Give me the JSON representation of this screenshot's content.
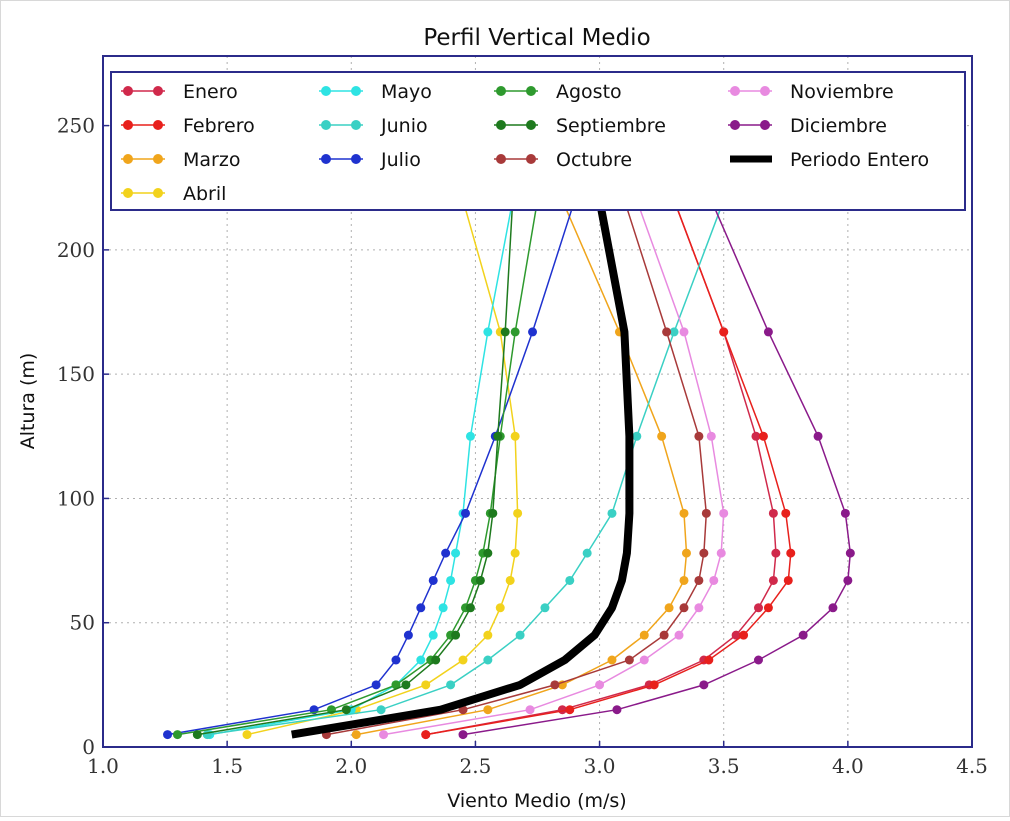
{
  "chart_data": {
    "type": "line",
    "title": "Perfil Vertical Medio",
    "xlabel": "Viento Medio (m/s)",
    "ylabel": "Altura (m)",
    "xlim": [
      1.0,
      4.5
    ],
    "ylim": [
      0,
      278
    ],
    "xticks": [
      "1.0",
      "1.5",
      "2.0",
      "2.5",
      "3.0",
      "3.5",
      "4.0",
      "4.5"
    ],
    "yticks": [
      "0",
      "50",
      "100",
      "150",
      "200",
      "250"
    ],
    "grid": true,
    "legend_position": "top",
    "heights": [
      5,
      15,
      25,
      35,
      45,
      56,
      67,
      78,
      94,
      125,
      167,
      220
    ],
    "series": [
      {
        "name": "Enero",
        "color": "#d0294b",
        "marker": true,
        "values": [
          2.3,
          2.85,
          3.2,
          3.42,
          3.55,
          3.64,
          3.7,
          3.71,
          3.7,
          3.63,
          3.5,
          3.3
        ]
      },
      {
        "name": "Febrero",
        "color": "#e8201c",
        "marker": true,
        "values": [
          2.3,
          2.88,
          3.22,
          3.44,
          3.58,
          3.68,
          3.76,
          3.77,
          3.75,
          3.66,
          3.5,
          3.3
        ]
      },
      {
        "name": "Marzo",
        "color": "#f0a51c",
        "marker": true,
        "values": [
          2.02,
          2.55,
          2.85,
          3.05,
          3.18,
          3.28,
          3.34,
          3.35,
          3.34,
          3.25,
          3.08,
          2.85
        ]
      },
      {
        "name": "Abril",
        "color": "#f2d21c",
        "marker": true,
        "values": [
          1.58,
          2.02,
          2.3,
          2.45,
          2.55,
          2.6,
          2.64,
          2.66,
          2.67,
          2.66,
          2.6,
          2.45
        ]
      },
      {
        "name": "Mayo",
        "color": "#2ee3e3",
        "marker": true,
        "values": [
          1.43,
          2.0,
          2.18,
          2.28,
          2.33,
          2.37,
          2.4,
          2.42,
          2.45,
          2.48,
          2.55,
          2.65
        ]
      },
      {
        "name": "Junio",
        "color": "#3ad0c4",
        "marker": true,
        "values": [
          1.42,
          2.12,
          2.4,
          2.55,
          2.68,
          2.78,
          2.88,
          2.95,
          3.05,
          3.15,
          3.3,
          3.5
        ]
      },
      {
        "name": "Julio",
        "color": "#1f32cf",
        "marker": true,
        "values": [
          1.26,
          1.85,
          2.1,
          2.18,
          2.23,
          2.28,
          2.33,
          2.38,
          2.46,
          2.58,
          2.73,
          2.9
        ]
      },
      {
        "name": "Agosto",
        "color": "#2e9a2e",
        "marker": true,
        "values": [
          1.3,
          1.92,
          2.18,
          2.32,
          2.4,
          2.46,
          2.5,
          2.53,
          2.56,
          2.6,
          2.66,
          2.75
        ]
      },
      {
        "name": "Septiembre",
        "color": "#1e7a1e",
        "marker": true,
        "values": [
          1.38,
          1.98,
          2.22,
          2.34,
          2.42,
          2.48,
          2.52,
          2.55,
          2.57,
          2.59,
          2.62,
          2.65
        ]
      },
      {
        "name": "Octubre",
        "color": "#a83a3a",
        "marker": true,
        "values": [
          1.9,
          2.45,
          2.82,
          3.12,
          3.26,
          3.34,
          3.4,
          3.42,
          3.43,
          3.4,
          3.27,
          3.1
        ]
      },
      {
        "name": "Noviembre",
        "color": "#e88ae0",
        "marker": true,
        "values": [
          2.13,
          2.72,
          3.0,
          3.18,
          3.32,
          3.4,
          3.46,
          3.49,
          3.5,
          3.45,
          3.34,
          3.15
        ]
      },
      {
        "name": "Diciembre",
        "color": "#8a1a8a",
        "marker": true,
        "values": [
          2.45,
          3.07,
          3.42,
          3.64,
          3.82,
          3.94,
          4.0,
          4.01,
          3.99,
          3.88,
          3.68,
          3.45
        ]
      },
      {
        "name": "Periodo Entero",
        "color": "#000000",
        "marker": false,
        "values": [
          1.76,
          2.36,
          2.68,
          2.86,
          2.98,
          3.05,
          3.09,
          3.11,
          3.12,
          3.12,
          3.1,
          3.0
        ]
      }
    ]
  }
}
